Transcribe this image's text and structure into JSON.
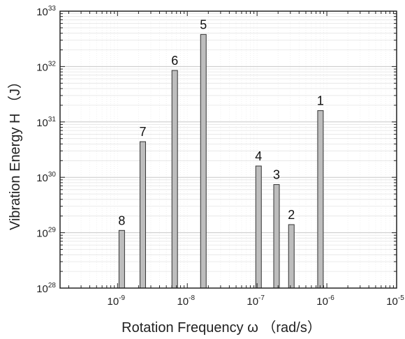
{
  "chart_data": {
    "type": "bar",
    "xlabel": "Rotation Frequency ω （rad/s）",
    "ylabel": "Vibration Energy H （J）",
    "x_scale": "log",
    "y_scale": "log",
    "xlim": [
      1.5e-10,
      1e-05
    ],
    "ylim": [
      1e+28,
      1e+33
    ],
    "grid": true,
    "x_ticks": [
      {
        "base": "10",
        "exp": "-9"
      },
      {
        "base": "10",
        "exp": "-8"
      },
      {
        "base": "10",
        "exp": "-7"
      },
      {
        "base": "10",
        "exp": "-6"
      },
      {
        "base": "10",
        "exp": "-5"
      }
    ],
    "y_ticks": [
      {
        "base": "10",
        "exp": "28"
      },
      {
        "base": "10",
        "exp": "29"
      },
      {
        "base": "10",
        "exp": "30"
      },
      {
        "base": "10",
        "exp": "31"
      },
      {
        "base": "10",
        "exp": "32"
      },
      {
        "base": "10",
        "exp": "33"
      }
    ],
    "bars": [
      {
        "label": "1",
        "x": 8.1e-07,
        "value": 1.6e+31
      },
      {
        "label": "2",
        "x": 3.1e-07,
        "value": 1.4e+29
      },
      {
        "label": "3",
        "x": 1.9e-07,
        "value": 7.4e+29
      },
      {
        "label": "4",
        "x": 1.05e-07,
        "value": 1.6e+30
      },
      {
        "label": "5",
        "x": 1.7e-08,
        "value": 3.8e+32
      },
      {
        "label": "6",
        "x": 6.6e-09,
        "value": 8.5e+31
      },
      {
        "label": "7",
        "x": 2.3e-09,
        "value": 4.4e+30
      },
      {
        "label": "8",
        "x": 1.15e-09,
        "value": 1.1e+29
      }
    ],
    "colors": {
      "bar_fill": "#bdbdbd",
      "bar_stroke": "#333333",
      "grid": "#d0d0d0"
    }
  }
}
